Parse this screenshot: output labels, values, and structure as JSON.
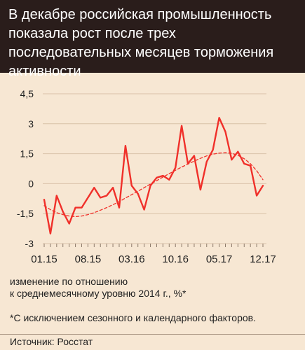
{
  "header": {
    "title": "В декабре российская промышленность показала рост после трех последовательных месяцев торможения активности"
  },
  "chart_data": {
    "type": "line",
    "ylim": [
      -3,
      4.5
    ],
    "y_ticks": [
      "4,5",
      "3",
      "1,5",
      "0",
      "-1,5",
      "-3"
    ],
    "y_tick_values": [
      4.5,
      3,
      1.5,
      0,
      -1.5,
      -3
    ],
    "x_tick_labels": [
      "01.15",
      "08.15",
      "03.16",
      "10.16",
      "05.17",
      "12.17"
    ],
    "x_tick_index": [
      0,
      7,
      14,
      21,
      28,
      35
    ],
    "grid": "horizontal",
    "series": [
      {
        "style": "solid",
        "color": "#f0302a",
        "values": [
          -0.8,
          -2.5,
          -0.6,
          -1.4,
          -2.0,
          -1.2,
          -1.2,
          -0.7,
          -0.2,
          -0.7,
          -0.6,
          -0.2,
          -1.2,
          1.9,
          -0.1,
          -0.5,
          -1.3,
          -0.1,
          0.3,
          0.4,
          0.2,
          0.8,
          2.9,
          1.0,
          1.4,
          -0.3,
          1.1,
          1.7,
          3.3,
          2.6,
          1.2,
          1.6,
          1.0,
          0.9,
          -0.6,
          -0.1
        ]
      },
      {
        "style": "dashed",
        "color": "#f0302a",
        "values": [
          -1.1,
          -1.3,
          -1.45,
          -1.55,
          -1.62,
          -1.65,
          -1.62,
          -1.55,
          -1.45,
          -1.33,
          -1.2,
          -1.05,
          -0.9,
          -0.72,
          -0.55,
          -0.38,
          -0.2,
          -0.02,
          0.15,
          0.33,
          0.5,
          0.67,
          0.83,
          0.98,
          1.13,
          1.27,
          1.39,
          1.48,
          1.53,
          1.55,
          1.52,
          1.42,
          1.25,
          1.0,
          0.65,
          0.2
        ]
      }
    ]
  },
  "notes": {
    "units_line1": "изменение по отношению",
    "units_line2": "к среднемесячному уровню 2014 г., %*",
    "footnote": "*С исключением сезонного и календарного факторов.",
    "source": "Источник: Росстат"
  }
}
